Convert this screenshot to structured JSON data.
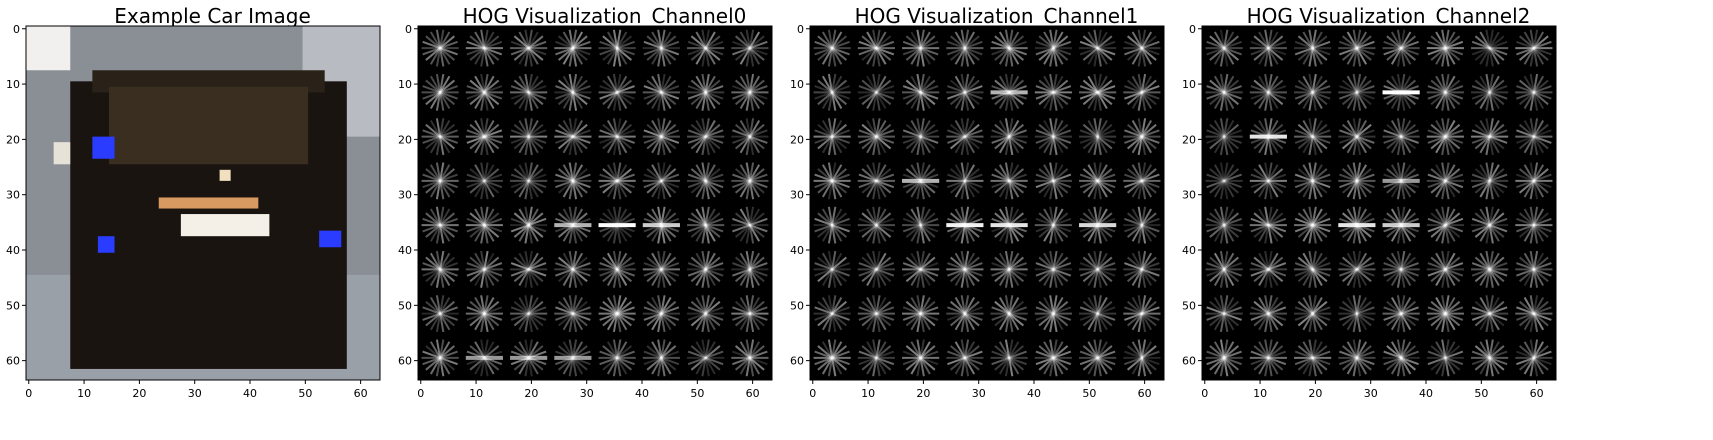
{
  "figure": {
    "panels": [
      {
        "title": "Example Car Image",
        "kind": "photo",
        "x_ticks": [
          "0",
          "10",
          "20",
          "30",
          "40",
          "50",
          "60"
        ],
        "y_ticks": [
          "0",
          "10",
          "20",
          "30",
          "40",
          "50",
          "60"
        ]
      },
      {
        "title": "HOG Visualization_Channel0",
        "kind": "hog",
        "x_ticks": [
          "0",
          "10",
          "20",
          "30",
          "40",
          "50",
          "60"
        ],
        "y_ticks": [
          "0",
          "10",
          "20",
          "30",
          "40",
          "50",
          "60"
        ]
      },
      {
        "title": "HOG Visualization_Channel1",
        "kind": "hog",
        "x_ticks": [
          "0",
          "10",
          "20",
          "30",
          "40",
          "50",
          "60"
        ],
        "y_ticks": [
          "0",
          "10",
          "20",
          "30",
          "40",
          "50",
          "60"
        ]
      },
      {
        "title": "HOG Visualization_Channel2",
        "kind": "hog",
        "x_ticks": [
          "0",
          "10",
          "20",
          "30",
          "40",
          "50",
          "60"
        ],
        "y_ticks": [
          "0",
          "10",
          "20",
          "30",
          "40",
          "50",
          "60"
        ]
      }
    ],
    "colors": {
      "hog_background": "#000000",
      "hog_stroke": "#ffffff",
      "photo_car": "#1a1410",
      "photo_window": "#3a2e20",
      "photo_ground": "#9aa0a8",
      "photo_plate": "#f4f0e8",
      "photo_light": "#2a3cff"
    }
  }
}
